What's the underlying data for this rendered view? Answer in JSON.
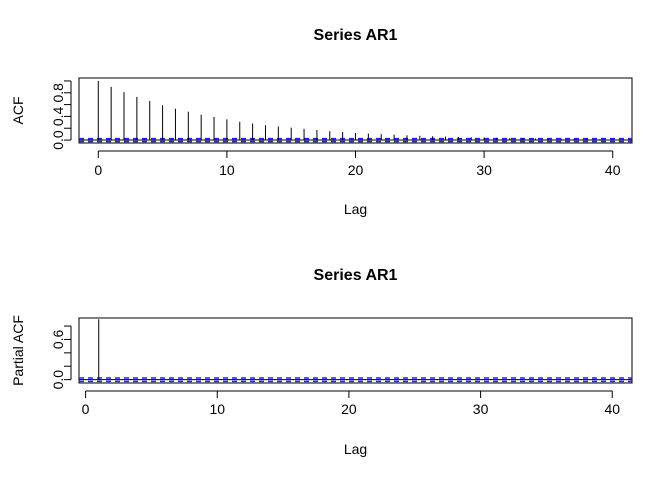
{
  "chart_data": [
    {
      "type": "bar",
      "title": "Series  AR1",
      "xlabel": "Lag",
      "ylabel": "ACF",
      "xlim": [
        -1.5,
        41.5
      ],
      "ylim": [
        -0.05,
        1.05
      ],
      "x_ticks": [
        0,
        10,
        20,
        30,
        40
      ],
      "x_tick_labels": [
        "0",
        "10",
        "20",
        "30",
        "40"
      ],
      "y_ticks": [
        0.0,
        0.4,
        0.8
      ],
      "y_tick_labels": [
        "0.0",
        "0.4",
        "0.8"
      ],
      "y_minor_ticks": [
        0.2,
        0.6,
        1.0
      ],
      "x": [
        0,
        1,
        2,
        3,
        4,
        5,
        6,
        7,
        8,
        9,
        10,
        11,
        12,
        13,
        14,
        15,
        16,
        17,
        18,
        19,
        20,
        21,
        22,
        23,
        24,
        25,
        26,
        27,
        28,
        29,
        30,
        31,
        32,
        33,
        34,
        35,
        36,
        37,
        38,
        39,
        40
      ],
      "values": [
        1.0,
        0.9,
        0.81,
        0.73,
        0.66,
        0.59,
        0.53,
        0.48,
        0.43,
        0.39,
        0.35,
        0.31,
        0.28,
        0.25,
        0.23,
        0.21,
        0.19,
        0.17,
        0.15,
        0.135,
        0.12,
        0.11,
        0.1,
        0.09,
        0.08,
        0.072,
        0.065,
        0.058,
        0.052,
        0.047,
        0.042,
        0.038,
        0.034,
        0.03,
        0.027,
        0.024,
        0.022,
        0.02,
        0.018,
        0.016,
        0.014
      ],
      "ci_bound": 0.025,
      "ci_color": "#1f1fff",
      "bar_color": "#000000",
      "grid": false
    },
    {
      "type": "bar",
      "title": "Series  AR1",
      "xlabel": "Lag",
      "ylabel": "Partial ACF",
      "xlim": [
        -0.5,
        41.5
      ],
      "ylim": [
        -0.05,
        0.92
      ],
      "x_ticks": [
        0,
        10,
        20,
        30,
        40
      ],
      "x_tick_labels": [
        "0",
        "10",
        "20",
        "30",
        "40"
      ],
      "y_ticks": [
        0.0,
        0.6
      ],
      "y_tick_labels": [
        "0.0",
        "0.6"
      ],
      "y_minor_ticks": [
        0.2,
        0.4,
        0.8
      ],
      "x": [
        1,
        2,
        3,
        4,
        5,
        6,
        7,
        8,
        9,
        10,
        11,
        12,
        13,
        14,
        15,
        16,
        17,
        18,
        19,
        20,
        21,
        22,
        23,
        24,
        25,
        26,
        27,
        28,
        29,
        30,
        31,
        32,
        33,
        34,
        35,
        36,
        37,
        38,
        39,
        40
      ],
      "values": [
        0.9,
        0.005,
        -0.004,
        0.006,
        -0.003,
        0.004,
        -0.005,
        0.003,
        -0.002,
        0.004,
        -0.003,
        0.005,
        -0.004,
        0.002,
        -0.003,
        0.004,
        -0.002,
        0.003,
        -0.004,
        0.002,
        -0.003,
        0.004,
        -0.002,
        0.003,
        -0.004,
        0.002,
        -0.003,
        0.004,
        -0.002,
        0.003,
        -0.004,
        0.002,
        -0.003,
        0.004,
        -0.002,
        0.003,
        -0.004,
        0.002,
        -0.003,
        0.002
      ],
      "ci_bound": 0.025,
      "ci_color": "#1f1fff",
      "bar_color": "#000000",
      "grid": false
    }
  ]
}
